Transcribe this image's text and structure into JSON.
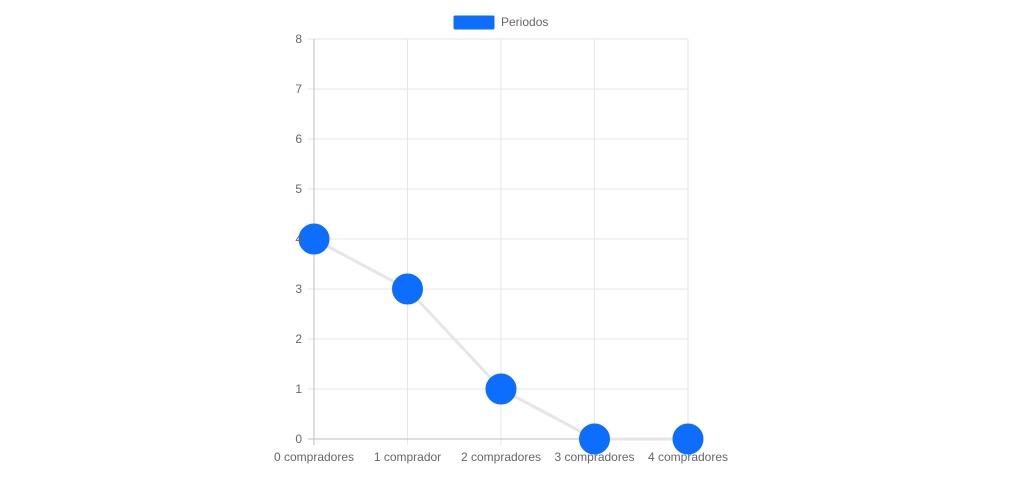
{
  "chart_data": {
    "type": "line",
    "categories": [
      "0 compradores",
      "1 comprador",
      "2 compradores",
      "3 compradores",
      "4 compradores"
    ],
    "series": [
      {
        "name": "Periodos",
        "values": [
          4,
          3,
          1,
          0,
          0
        ]
      }
    ],
    "ylim": [
      0,
      8
    ],
    "yticks": [
      0,
      1,
      2,
      3,
      4,
      5,
      6,
      7,
      8
    ],
    "grid": true,
    "legend_position": "top",
    "colors": {
      "point": "#0d6efd",
      "line": "#e6e6e6",
      "grid": "#e6e6e6",
      "axis": "#bdbdbd",
      "text": "#666666"
    }
  }
}
